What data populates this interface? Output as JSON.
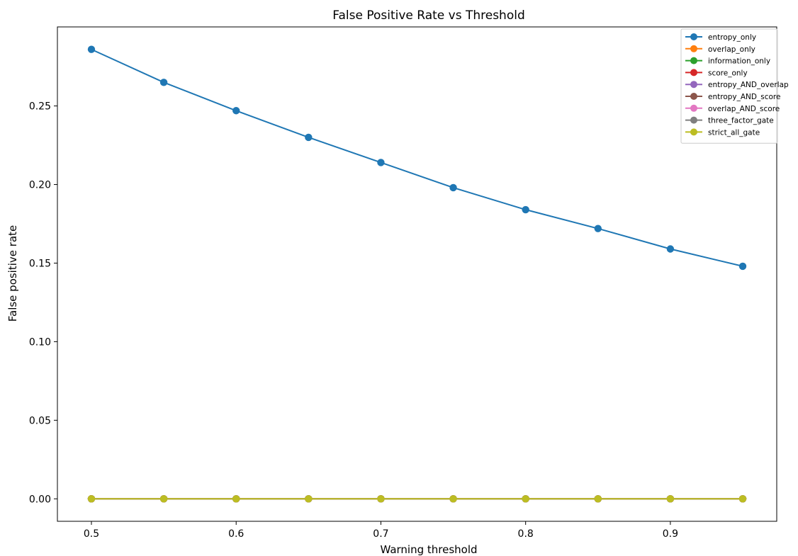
{
  "chart_data": {
    "type": "line",
    "title": "False Positive Rate vs Threshold",
    "xlabel": "Warning threshold",
    "ylabel": "False positive rate",
    "x": [
      0.5,
      0.55,
      0.6,
      0.65,
      0.7,
      0.75,
      0.8,
      0.85,
      0.9,
      0.95
    ],
    "xlim": [
      0.4765,
      0.9735
    ],
    "ylim": [
      -0.0143,
      0.3003
    ],
    "xticks": [
      {
        "value": 0.5,
        "label": "0.5"
      },
      {
        "value": 0.6,
        "label": "0.6"
      },
      {
        "value": 0.7,
        "label": "0.7"
      },
      {
        "value": 0.8,
        "label": "0.8"
      },
      {
        "value": 0.9,
        "label": "0.9"
      }
    ],
    "yticks": [
      {
        "value": 0.0,
        "label": "0.00"
      },
      {
        "value": 0.05,
        "label": "0.05"
      },
      {
        "value": 0.1,
        "label": "0.10"
      },
      {
        "value": 0.15,
        "label": "0.15"
      },
      {
        "value": 0.2,
        "label": "0.20"
      },
      {
        "value": 0.25,
        "label": "0.25"
      }
    ],
    "grid": false,
    "legend_position": "top-right",
    "series": [
      {
        "name": "entropy_only",
        "color": "#1f77b4",
        "values": [
          0.286,
          0.265,
          0.247,
          0.23,
          0.214,
          0.198,
          0.184,
          0.172,
          0.159,
          0.148
        ]
      },
      {
        "name": "overlap_only",
        "color": "#ff7f0e",
        "values": [
          0,
          0,
          0,
          0,
          0,
          0,
          0,
          0,
          0,
          0
        ]
      },
      {
        "name": "information_only",
        "color": "#2ca02c",
        "values": [
          0,
          0,
          0,
          0,
          0,
          0,
          0,
          0,
          0,
          0
        ]
      },
      {
        "name": "score_only",
        "color": "#d62728",
        "values": [
          0,
          0,
          0,
          0,
          0,
          0,
          0,
          0,
          0,
          0
        ]
      },
      {
        "name": "entropy_AND_overlap",
        "color": "#9467bd",
        "values": [
          0,
          0,
          0,
          0,
          0,
          0,
          0,
          0,
          0,
          0
        ]
      },
      {
        "name": "entropy_AND_score",
        "color": "#8c564b",
        "values": [
          0,
          0,
          0,
          0,
          0,
          0,
          0,
          0,
          0,
          0
        ]
      },
      {
        "name": "overlap_AND_score",
        "color": "#e377c2",
        "values": [
          0,
          0,
          0,
          0,
          0,
          0,
          0,
          0,
          0,
          0
        ]
      },
      {
        "name": "three_factor_gate",
        "color": "#7f7f7f",
        "values": [
          0,
          0,
          0,
          0,
          0,
          0,
          0,
          0,
          0,
          0
        ]
      },
      {
        "name": "strict_all_gate",
        "color": "#bcbd22",
        "values": [
          0,
          0,
          0,
          0,
          0,
          0,
          0,
          0,
          0,
          0
        ]
      }
    ]
  }
}
